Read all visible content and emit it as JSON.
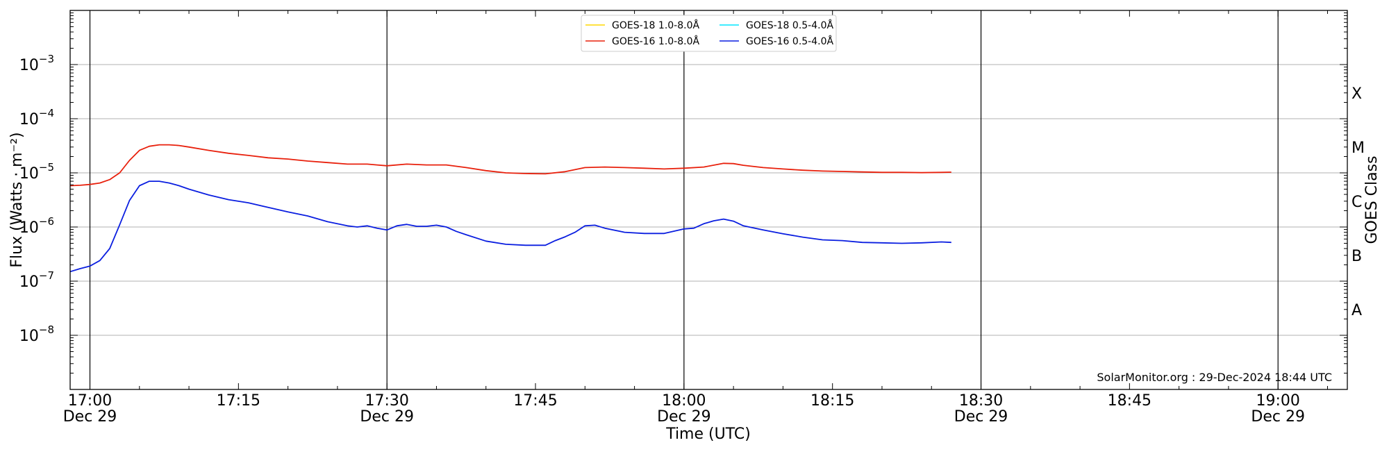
{
  "chart_data": {
    "type": "line",
    "title": "",
    "xlabel": "Time (UTC)",
    "ylabel": "Flux (Watts · m⁻²)",
    "y2label": "GOES Class",
    "yscale": "log",
    "xlim": [
      "16:58",
      "19:07"
    ],
    "ylim": [
      1e-09,
      0.01
    ],
    "grid": "horizontal at decades",
    "legend_position": "top-center",
    "x_ticks": [
      {
        "time": "17:00",
        "label": "17:00",
        "date": "Dec 29"
      },
      {
        "time": "17:15",
        "label": "17:15",
        "date": ""
      },
      {
        "time": "17:30",
        "label": "17:30",
        "date": "Dec 29"
      },
      {
        "time": "17:45",
        "label": "17:45",
        "date": ""
      },
      {
        "time": "18:00",
        "label": "18:00",
        "date": "Dec 29"
      },
      {
        "time": "18:15",
        "label": "18:15",
        "date": ""
      },
      {
        "time": "18:30",
        "label": "18:30",
        "date": "Dec 29"
      },
      {
        "time": "18:45",
        "label": "18:45",
        "date": ""
      },
      {
        "time": "19:00",
        "label": "19:00",
        "date": "Dec 29"
      }
    ],
    "vertical_lines": [
      "17:00",
      "17:30",
      "18:00",
      "18:30",
      "19:00"
    ],
    "y_ticks": [
      {
        "value": 1e-08,
        "base": "10",
        "exp": "−8"
      },
      {
        "value": 1e-07,
        "base": "10",
        "exp": "−7"
      },
      {
        "value": 1e-06,
        "base": "10",
        "exp": "−6"
      },
      {
        "value": 1e-05,
        "base": "10",
        "exp": "−5"
      },
      {
        "value": 0.0001,
        "base": "10",
        "exp": "−4"
      },
      {
        "value": 0.001,
        "base": "10",
        "exp": "−3"
      }
    ],
    "goes_classes": [
      {
        "label": "A",
        "value": 3e-08
      },
      {
        "label": "B",
        "value": 3e-07
      },
      {
        "label": "C",
        "value": 3e-06
      },
      {
        "label": "M",
        "value": 3e-05
      },
      {
        "label": "X",
        "value": 0.0003
      }
    ],
    "credit": "SolarMonitor.org : 29-Dec-2024 18:44 UTC",
    "series": [
      {
        "name": "GOES-18 1.0-8.0Å",
        "color": "#ffd700",
        "times": [],
        "values": []
      },
      {
        "name": "GOES-18 0.5-4.0Å",
        "color": "#00e5ff",
        "times": [],
        "values": []
      },
      {
        "name": "GOES-16 1.0-8.0Å",
        "color": "#e8200c",
        "times": [
          "16:58",
          "16:59",
          "17:00",
          "17:01",
          "17:02",
          "17:03",
          "17:04",
          "17:05",
          "17:06",
          "17:07",
          "17:08",
          "17:09",
          "17:10",
          "17:12",
          "17:14",
          "17:16",
          "17:18",
          "17:20",
          "17:22",
          "17:24",
          "17:26",
          "17:28",
          "17:29",
          "17:30",
          "17:32",
          "17:34",
          "17:36",
          "17:38",
          "17:40",
          "17:42",
          "17:44",
          "17:46",
          "17:48",
          "17:50",
          "17:52",
          "17:54",
          "17:56",
          "17:58",
          "18:00",
          "18:02",
          "18:04",
          "18:05",
          "18:06",
          "18:08",
          "18:10",
          "18:12",
          "18:14",
          "18:16",
          "18:18",
          "18:20",
          "18:22",
          "18:24",
          "18:26",
          "18:27"
        ],
        "values": [
          5.8e-06,
          5.9e-06,
          6.1e-06,
          6.5e-06,
          7.5e-06,
          1e-05,
          1.7e-05,
          2.6e-05,
          3.1e-05,
          3.3e-05,
          3.3e-05,
          3.2e-05,
          3e-05,
          2.6e-05,
          2.3e-05,
          2.1e-05,
          1.9e-05,
          1.8e-05,
          1.65e-05,
          1.55e-05,
          1.45e-05,
          1.45e-05,
          1.4e-05,
          1.35e-05,
          1.45e-05,
          1.4e-05,
          1.4e-05,
          1.25e-05,
          1.1e-05,
          1e-05,
          9.7e-06,
          9.6e-06,
          1.05e-05,
          1.25e-05,
          1.28e-05,
          1.25e-05,
          1.22e-05,
          1.18e-05,
          1.22e-05,
          1.28e-05,
          1.5e-05,
          1.48e-05,
          1.38e-05,
          1.25e-05,
          1.18e-05,
          1.12e-05,
          1.08e-05,
          1.06e-05,
          1.04e-05,
          1.02e-05,
          1.02e-05,
          1.01e-05,
          1.02e-05,
          1.03e-05
        ]
      },
      {
        "name": "GOES-16 0.5-4.0Å",
        "color": "#0a1ee0",
        "times": [
          "16:58",
          "16:59",
          "17:00",
          "17:01",
          "17:02",
          "17:03",
          "17:04",
          "17:05",
          "17:06",
          "17:07",
          "17:08",
          "17:09",
          "17:10",
          "17:12",
          "17:14",
          "17:16",
          "17:18",
          "17:20",
          "17:22",
          "17:24",
          "17:26",
          "17:27",
          "17:28",
          "17:29",
          "17:30",
          "17:31",
          "17:32",
          "17:33",
          "17:34",
          "17:35",
          "17:36",
          "17:37",
          "17:38",
          "17:40",
          "17:42",
          "17:44",
          "17:46",
          "17:47",
          "17:48",
          "17:49",
          "17:50",
          "17:51",
          "17:52",
          "17:54",
          "17:56",
          "17:58",
          "18:00",
          "18:01",
          "18:02",
          "18:03",
          "18:04",
          "18:05",
          "18:06",
          "18:08",
          "18:10",
          "18:12",
          "18:14",
          "18:16",
          "18:18",
          "18:20",
          "18:22",
          "18:24",
          "18:26",
          "18:27"
        ],
        "values": [
          1.5e-07,
          1.7e-07,
          1.9e-07,
          2.4e-07,
          4e-07,
          1.1e-06,
          3.1e-06,
          5.8e-06,
          7e-06,
          7e-06,
          6.5e-06,
          5.8e-06,
          5e-06,
          3.9e-06,
          3.2e-06,
          2.8e-06,
          2.3e-06,
          1.9e-06,
          1.6e-06,
          1.25e-06,
          1.05e-06,
          1e-06,
          1.05e-06,
          9.5e-07,
          8.8e-07,
          1.05e-06,
          1.12e-06,
          1.03e-06,
          1.03e-06,
          1.08e-06,
          1e-06,
          8.3e-07,
          7.2e-07,
          5.5e-07,
          4.8e-07,
          4.6e-07,
          4.6e-07,
          5.6e-07,
          6.6e-07,
          8e-07,
          1.05e-06,
          1.08e-06,
          9.5e-07,
          8e-07,
          7.6e-07,
          7.6e-07,
          9.2e-07,
          9.5e-07,
          1.15e-06,
          1.3e-06,
          1.4e-06,
          1.28e-06,
          1.05e-06,
          8.8e-07,
          7.5e-07,
          6.5e-07,
          5.8e-07,
          5.6e-07,
          5.2e-07,
          5.1e-07,
          5e-07,
          5.1e-07,
          5.3e-07,
          5.2e-07
        ]
      }
    ]
  }
}
